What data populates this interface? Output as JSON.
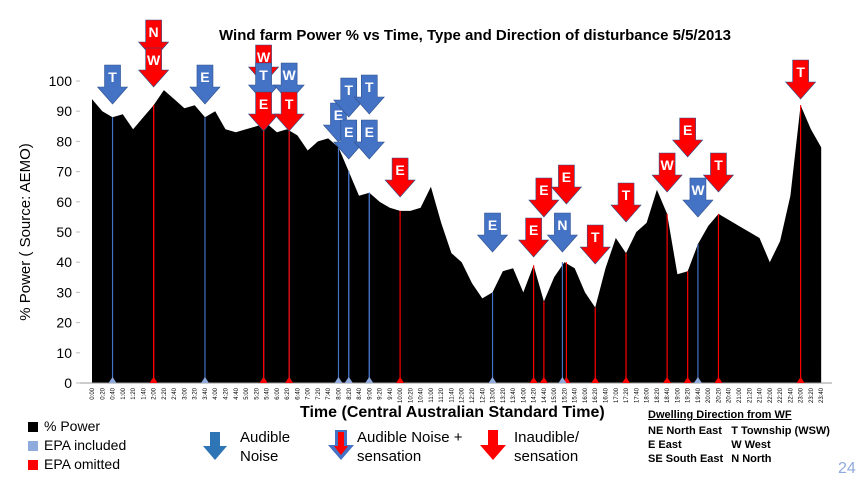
{
  "chart_data": {
    "type": "area",
    "title": "Wind farm Power %  vs  Time, Type and Direction of disturbance 5/5/2013",
    "x_label": "Time   (Central Australian Standard Time)",
    "y_label": "% Power ( Source: AEMO)",
    "categories": [
      "0:00",
      "0:20",
      "0:40",
      "1:00",
      "1:20",
      "1:40",
      "2:00",
      "2:20",
      "2:40",
      "3:00",
      "3:20",
      "3:40",
      "4:00",
      "4:20",
      "4:40",
      "5:00",
      "5:20",
      "5:40",
      "6:00",
      "6:20",
      "6:40",
      "7:00",
      "7:20",
      "7:40",
      "8:00",
      "8:20",
      "8:40",
      "9:00",
      "9:20",
      "9:40",
      "10:00",
      "10:20",
      "10:40",
      "11:00",
      "11:20",
      "11:40",
      "12:00",
      "12:20",
      "12:40",
      "13:00",
      "13:20",
      "13:40",
      "14:00",
      "14:20",
      "14:40",
      "15:00",
      "15:20",
      "15:40",
      "16:00",
      "16:20",
      "16:40",
      "17:00",
      "17:20",
      "17:40",
      "18:00",
      "18:20",
      "18:40",
      "19:00",
      "19:20",
      "19:40",
      "20:00",
      "20:20",
      "20:40",
      "21:00",
      "21:20",
      "21:40",
      "22:00",
      "22:20",
      "22:40",
      "23:00",
      "23:20",
      "23:40"
    ],
    "series": [
      {
        "name": "% Power",
        "color": "#000000",
        "values": [
          94,
          90,
          88,
          89,
          84,
          88,
          92,
          97,
          94,
          91,
          92,
          88,
          90,
          84,
          83,
          84,
          85,
          86,
          83,
          84,
          82,
          77,
          80,
          81,
          78,
          70,
          62,
          63,
          60,
          58,
          57,
          57,
          58,
          65,
          53,
          43,
          40,
          33,
          28,
          30,
          37,
          38,
          30,
          39,
          27,
          35,
          40,
          38,
          30,
          25,
          38,
          48,
          43,
          50,
          53,
          64,
          56,
          36,
          37,
          46,
          52,
          56,
          54,
          52,
          50,
          48,
          40,
          47,
          62,
          92,
          84,
          78
        ]
      }
    ],
    "ylim": [
      0,
      100
    ],
    "yticks": [
      0,
      10,
      20,
      30,
      40,
      50,
      60,
      70,
      80,
      90,
      100
    ],
    "grid": false,
    "epa_legend": [
      {
        "label": "EPA included",
        "color": "#8faadc"
      },
      {
        "label": "EPA omitted",
        "color": "#ff0000"
      }
    ],
    "arrow_legend": [
      {
        "label": "Audible Noise"
      },
      {
        "label": "Audible Noise + sensation"
      },
      {
        "label": "Inaudible/ sensation"
      }
    ],
    "annotations": [
      {
        "text": "T",
        "at": "0:40",
        "color": "#4472c4"
      },
      {
        "text": "N",
        "at": "2:00",
        "color": "#ff0000"
      },
      {
        "text": "W",
        "at": "2:00",
        "color": "#ff0000"
      },
      {
        "text": "E",
        "at": "3:40",
        "color": "#4472c4"
      },
      {
        "text": "W",
        "at": "5:40",
        "color": "#ff0000"
      },
      {
        "text": "T",
        "at": "5:40",
        "color": "#4472c4"
      },
      {
        "text": "E",
        "at": "5:40",
        "color": "#ff0000"
      },
      {
        "text": "W",
        "at": "6:20",
        "color": "#4472c4"
      },
      {
        "text": "T",
        "at": "6:20",
        "color": "#ff0000"
      },
      {
        "text": "E",
        "at": "8:00",
        "color": "#4472c4"
      },
      {
        "text": "T",
        "at": "8:20",
        "color": "#4472c4"
      },
      {
        "text": "E",
        "at": "8:20",
        "color": "#4472c4"
      },
      {
        "text": "T",
        "at": "9:00",
        "color": "#4472c4"
      },
      {
        "text": "E",
        "at": "9:00",
        "color": "#4472c4"
      },
      {
        "text": "E",
        "at": "10:00",
        "color": "#ff0000"
      },
      {
        "text": "E",
        "at": "13:00",
        "color": "#4472c4"
      },
      {
        "text": "E",
        "at": "14:20",
        "color": "#ff0000"
      },
      {
        "text": "E",
        "at": "14:40",
        "color": "#ff0000"
      },
      {
        "text": "E",
        "at": "15:20",
        "color": "#ff0000"
      },
      {
        "text": "N",
        "at": "15:20",
        "color": "#4472c4"
      },
      {
        "text": "T",
        "at": "16:20",
        "color": "#ff0000"
      },
      {
        "text": "T",
        "at": "17:20",
        "color": "#ff0000"
      },
      {
        "text": "W",
        "at": "18:40",
        "color": "#ff0000"
      },
      {
        "text": "E",
        "at": "19:20",
        "color": "#ff0000"
      },
      {
        "text": "W",
        "at": "19:40",
        "color": "#4472c4"
      },
      {
        "text": "T",
        "at": "20:20",
        "color": "#ff0000"
      },
      {
        "text": "T",
        "at": "23:00",
        "color": "#ff0000"
      }
    ],
    "direction_key": {
      "title": "Dwelling Direction from WF",
      "rows": [
        [
          "NE  North East",
          "T  Township (WSW)"
        ],
        [
          "E  East",
          "W  West"
        ],
        [
          "SE  South East",
          "N  North"
        ]
      ]
    },
    "page_number": "24"
  }
}
